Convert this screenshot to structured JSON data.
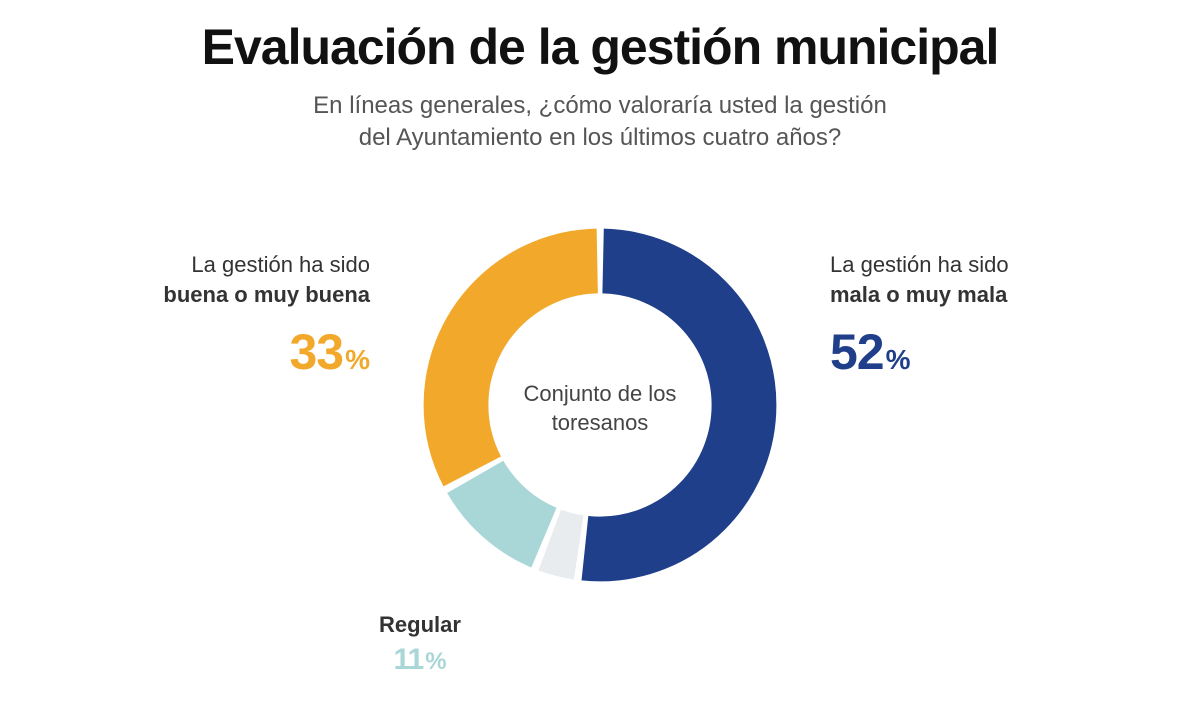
{
  "title": "Evaluación de la gestión municipal",
  "subtitle_line1": "En líneas generales, ¿cómo valoraría usted la gestión",
  "subtitle_line2": "del Ayuntamiento en los últimos cuatro años?",
  "center_label_line1": "Conjunto de los",
  "center_label_line2": "toresanos",
  "chart": {
    "type": "donut",
    "background_color": "#ffffff",
    "ring_thickness_pct_of_radius": 0.36,
    "gap_deg": 2.5,
    "segments": [
      {
        "key": "bad",
        "value": 52,
        "color": "#1f3f8a"
      },
      {
        "key": "unknown",
        "value": 4,
        "color": "#e9ecef"
      },
      {
        "key": "regular",
        "value": 11,
        "color": "#a9d6d7"
      },
      {
        "key": "good",
        "value": 33,
        "color": "#f2a92b"
      }
    ]
  },
  "labels": {
    "good": {
      "line1": "La gestión ha sido",
      "line2": "buena o muy buena",
      "value": "33",
      "pct": "%",
      "value_color": "#f2a92b"
    },
    "bad": {
      "line1": "La gestión ha sido",
      "line2": "mala o muy mala",
      "value": "52",
      "pct": "%",
      "value_color": "#1f3f8a"
    },
    "regular": {
      "line2": "Regular",
      "value": "11",
      "pct": "%",
      "value_color": "#a9d6d7"
    }
  }
}
